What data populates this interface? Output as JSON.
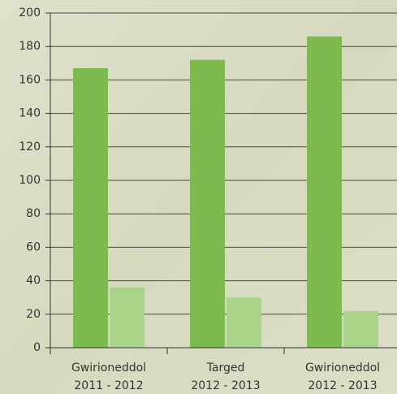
{
  "chart_data": {
    "type": "bar",
    "categories": [
      [
        "Gwirioneddol",
        "2011 - 2012"
      ],
      [
        "Targed",
        "2012 - 2013"
      ],
      [
        "Gwirioneddol",
        "2012 - 2013"
      ]
    ],
    "series": [
      {
        "color": "#7dba4f",
        "values": [
          167,
          172,
          186
        ]
      },
      {
        "color": "#a9d48a",
        "values": [
          36,
          30,
          22
        ]
      }
    ],
    "ylim": [
      0,
      200
    ],
    "yticks": [
      0,
      20,
      40,
      60,
      80,
      100,
      120,
      140,
      160,
      180,
      200
    ],
    "grid": true
  }
}
